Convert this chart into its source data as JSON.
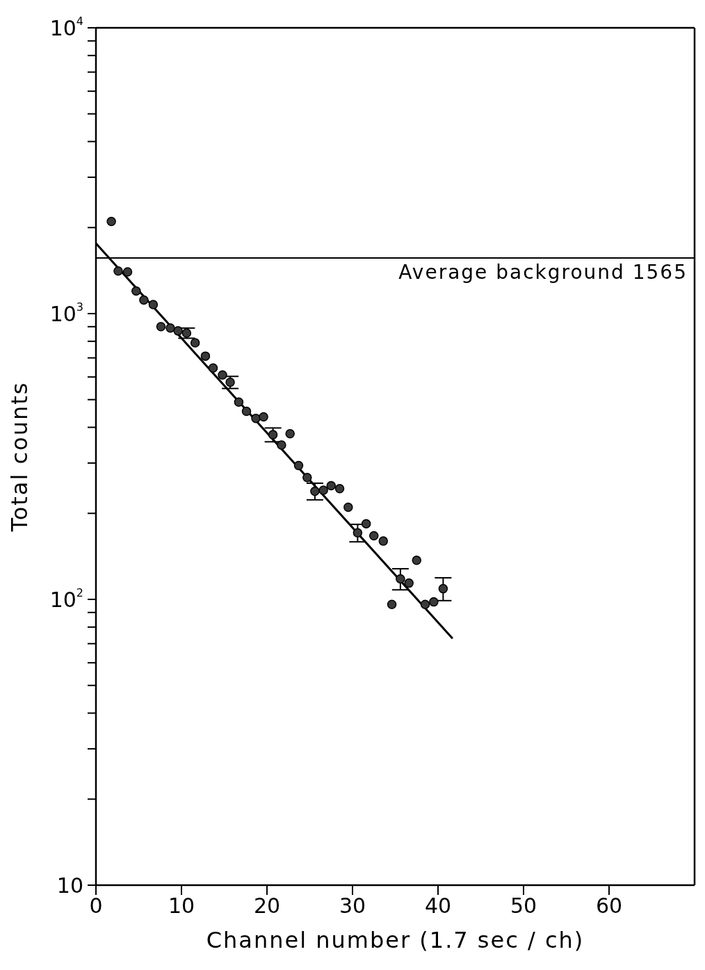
{
  "chart_data": {
    "type": "scatter",
    "xlabel": "Channel number (1.7 sec / ch)",
    "ylabel": "Total counts",
    "log": "y",
    "xlim": [
      0,
      70
    ],
    "xticks": [
      0,
      10,
      20,
      30,
      40,
      50,
      60
    ],
    "ylim": [
      10,
      10000
    ],
    "yticks": [
      {
        "value": 10,
        "label": "10"
      },
      {
        "value": 20,
        "label": null
      },
      {
        "value": 30,
        "label": null
      },
      {
        "value": 40,
        "label": null
      },
      {
        "value": 50,
        "label": null
      },
      {
        "value": 60,
        "label": null
      },
      {
        "value": 70,
        "label": null
      },
      {
        "value": 80,
        "label": null
      },
      {
        "value": 90,
        "label": null
      },
      {
        "value": 100,
        "label": "10$^{2}$"
      },
      {
        "value": 200,
        "label": null
      },
      {
        "value": 300,
        "label": null
      },
      {
        "value": 400,
        "label": null
      },
      {
        "value": 500,
        "label": null
      },
      {
        "value": 600,
        "label": null
      },
      {
        "value": 700,
        "label": null
      },
      {
        "value": 800,
        "label": null
      },
      {
        "value": 900,
        "label": null
      },
      {
        "value": 1000,
        "label": "10$^{3}$"
      },
      {
        "value": 2000,
        "label": null
      },
      {
        "value": 3000,
        "label": null
      },
      {
        "value": 4000,
        "label": null
      },
      {
        "value": 5000,
        "label": null
      },
      {
        "value": 6000,
        "label": null
      },
      {
        "value": 7000,
        "label": null
      },
      {
        "value": 8000,
        "label": null
      },
      {
        "value": 9000,
        "label": null
      },
      {
        "value": 10000,
        "label": "10$^{4}$"
      }
    ],
    "marker": "circle",
    "grid": false,
    "legend": false,
    "series": [
      {
        "type": "scatter",
        "color": "#3a3a3a",
        "x": [
          1.8,
          2.6,
          3.7,
          4.7,
          5.6,
          6.7,
          7.6,
          8.7,
          9.6,
          10.6,
          11.6,
          12.8,
          13.7,
          14.8,
          15.7,
          16.7,
          17.6,
          18.7,
          19.6,
          20.7,
          21.7,
          22.7,
          23.7,
          24.7,
          25.6,
          26.6,
          27.5,
          28.5,
          29.5,
          30.6,
          31.6,
          32.5,
          33.6,
          34.6,
          35.6,
          36.6,
          37.5,
          38.5,
          39.5,
          40.6
        ],
        "values": [
          2100,
          1410,
          1400,
          1200,
          1115,
          1075,
          900,
          890,
          870,
          855,
          790,
          710,
          645,
          610,
          575,
          490,
          455,
          430,
          435,
          377,
          347,
          380,
          294,
          267,
          239,
          241,
          250,
          244,
          210,
          171,
          184,
          167,
          160,
          96,
          118,
          114,
          137,
          96,
          98,
          109
        ],
        "errors": [
          null,
          null,
          null,
          null,
          null,
          null,
          null,
          null,
          null,
          35,
          null,
          null,
          null,
          null,
          28,
          null,
          null,
          null,
          null,
          21,
          null,
          null,
          null,
          null,
          16,
          null,
          null,
          null,
          null,
          12,
          null,
          null,
          null,
          null,
          10,
          null,
          null,
          null,
          null,
          10
        ]
      },
      {
        "type": "line",
        "marker": "none",
        "color": "#000000",
        "x": [
          0,
          41.7
        ],
        "values": [
          1760,
          73
        ]
      }
    ],
    "ref_lines": [
      {
        "axis": "y",
        "value": 1565,
        "label": "Average background 1565"
      }
    ]
  }
}
